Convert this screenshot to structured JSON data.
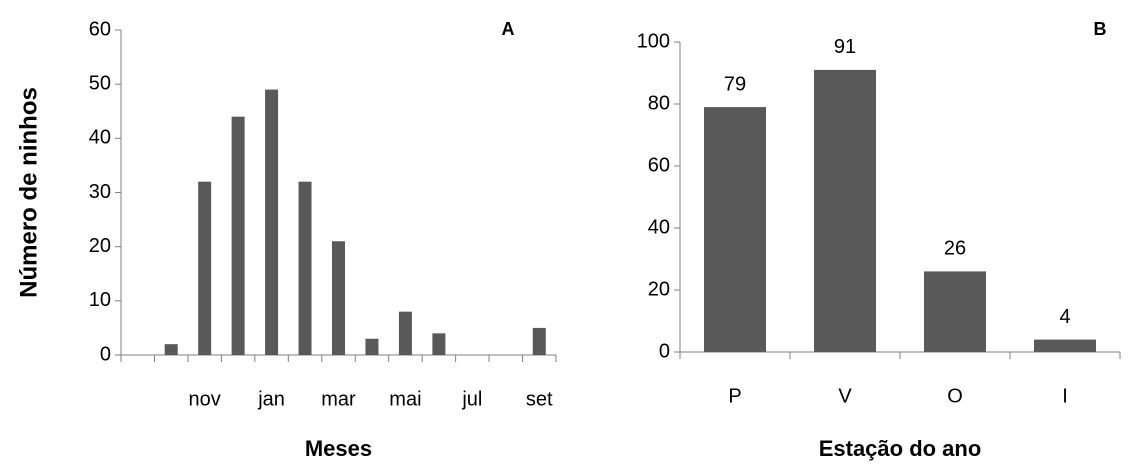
{
  "chart_data": [
    {
      "type": "bar",
      "annotation": "A",
      "x_label": "Meses",
      "y_label": "Número de ninhos",
      "categories": [
        null,
        null,
        "nov",
        null,
        "jan",
        null,
        "mar",
        null,
        "mai",
        null,
        "jul",
        null,
        "set"
      ],
      "values": [
        0,
        2,
        32,
        44,
        49,
        32,
        21,
        3,
        8,
        4,
        0,
        0,
        5
      ],
      "color": "#595959",
      "ylim": [
        0,
        60
      ],
      "yticks": [
        0,
        10,
        20,
        30,
        40,
        50,
        60
      ],
      "grid": false,
      "data_labels": false
    },
    {
      "type": "bar",
      "annotation": "B",
      "x_label": "Estação do ano",
      "categories": [
        "P",
        "V",
        "O",
        "I"
      ],
      "values": [
        79,
        91,
        26,
        4
      ],
      "color": "#595959",
      "ylim": [
        0,
        100
      ],
      "yticks": [
        0,
        20,
        40,
        60,
        80,
        100
      ],
      "grid": false,
      "data_labels": true
    }
  ]
}
